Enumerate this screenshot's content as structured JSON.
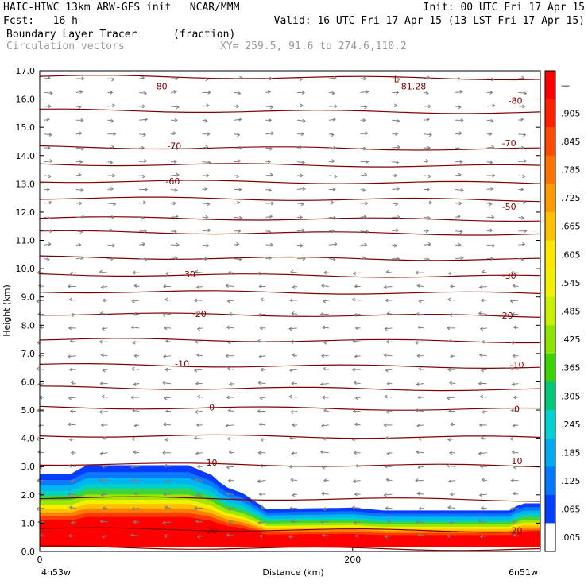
{
  "header": {
    "line1_left": "HAIC-HIWC 13km ARW-GFS init   NCAR/MMM",
    "line1_right": "Init: 00 UTC Fri 17 Apr 15",
    "line2_left": "Fcst:   16 h",
    "line2_right": "Valid: 16 UTC Fri 17 Apr 15 (13 LST Fri 17 Apr 15)",
    "field1": "Boundary Layer Tracer",
    "field1_units": "(fraction)",
    "field2": "Circulation vectors",
    "xy_range": "XY= 259.5, 91.6 to 274.6,110.2"
  },
  "chart_data": {
    "type": "heatmap",
    "ylabel": "Height (km)",
    "xlabel": "Distance (km)",
    "ylim": [
      0,
      17
    ],
    "xlim": [
      0,
      320
    ],
    "y_ticks": [
      "0.0",
      "1.0",
      "2.0",
      "3.0",
      "4.0",
      "5.0",
      "6.0",
      "7.0",
      "8.0",
      "9.0",
      "10.0",
      "11.0",
      "12.0",
      "13.0",
      "14.0",
      "15.0",
      "16.0",
      "17.0"
    ],
    "x_ticks": [
      {
        "value": 0,
        "label": "0"
      },
      {
        "value": 200,
        "label": "200"
      }
    ],
    "endpoints": {
      "left": "4n53w",
      "right": "6n51w"
    },
    "colorbar": {
      "labels": [
        "—",
        ".905",
        ".845",
        ".785",
        ".725",
        ".665",
        ".605",
        ".545",
        ".485",
        ".425",
        ".365",
        ".305",
        ".245",
        ".185",
        ".125",
        ".065",
        ".005"
      ],
      "colors": [
        "#ff0000",
        "#ff2000",
        "#ff4a00",
        "#ff7400",
        "#ff9a00",
        "#ffc000",
        "#ffe600",
        "#f0f000",
        "#c8ee00",
        "#8ee400",
        "#3cd400",
        "#00c878",
        "#00d2d2",
        "#00aaf0",
        "#0078ff",
        "#0040ff",
        "#ffffff"
      ]
    },
    "tracer_top_km": [
      [
        0,
        2.75
      ],
      [
        20,
        2.75
      ],
      [
        30,
        3.05
      ],
      [
        95,
        3.05
      ],
      [
        110,
        2.7
      ],
      [
        118,
        2.3
      ],
      [
        130,
        2.05
      ],
      [
        145,
        1.5
      ],
      [
        200,
        1.55
      ],
      [
        220,
        1.45
      ],
      [
        300,
        1.45
      ],
      [
        308,
        1.7
      ],
      [
        320,
        1.7
      ]
    ],
    "isotherm_labels": [
      {
        "text": "-80",
        "x": 77,
        "y": 16.45
      },
      {
        "text": "-81.28",
        "x": 238,
        "y": 16.45
      },
      {
        "text": "L",
        "x": 228,
        "y": 16.7
      },
      {
        "text": "-80",
        "x": 304,
        "y": 15.95
      },
      {
        "text": "-70",
        "x": 86,
        "y": 14.35
      },
      {
        "text": "-70",
        "x": 300,
        "y": 14.45
      },
      {
        "text": "-60",
        "x": 85,
        "y": 13.1
      },
      {
        "text": "-50",
        "x": 300,
        "y": 12.2
      },
      {
        "text": "-30",
        "x": 95,
        "y": 9.8
      },
      {
        "text": "-30",
        "x": 300,
        "y": 9.75
      },
      {
        "text": "-20",
        "x": 102,
        "y": 8.4
      },
      {
        "text": "-20",
        "x": 298,
        "y": 8.35
      },
      {
        "text": "-10",
        "x": 91,
        "y": 6.65
      },
      {
        "text": "-10",
        "x": 305,
        "y": 6.6
      },
      {
        "text": "0",
        "x": 110,
        "y": 5.1
      },
      {
        "text": "0",
        "x": 305,
        "y": 5.05
      },
      {
        "text": "10",
        "x": 110,
        "y": 3.15
      },
      {
        "text": "10",
        "x": 305,
        "y": 3.2
      },
      {
        "text": "20",
        "x": 110,
        "y": 0.75
      },
      {
        "text": "20",
        "x": 305,
        "y": 0.75
      }
    ],
    "contour_heights_km": [
      16.8,
      15.6,
      14.3,
      13.7,
      13.1,
      12.5,
      11.8,
      11.3,
      10.4,
      9.8,
      9.2,
      8.4,
      7.5,
      6.6,
      5.8,
      5.1,
      4.1,
      3.1,
      1.9,
      0.8,
      0.15
    ],
    "grid": false,
    "legend": "right"
  }
}
